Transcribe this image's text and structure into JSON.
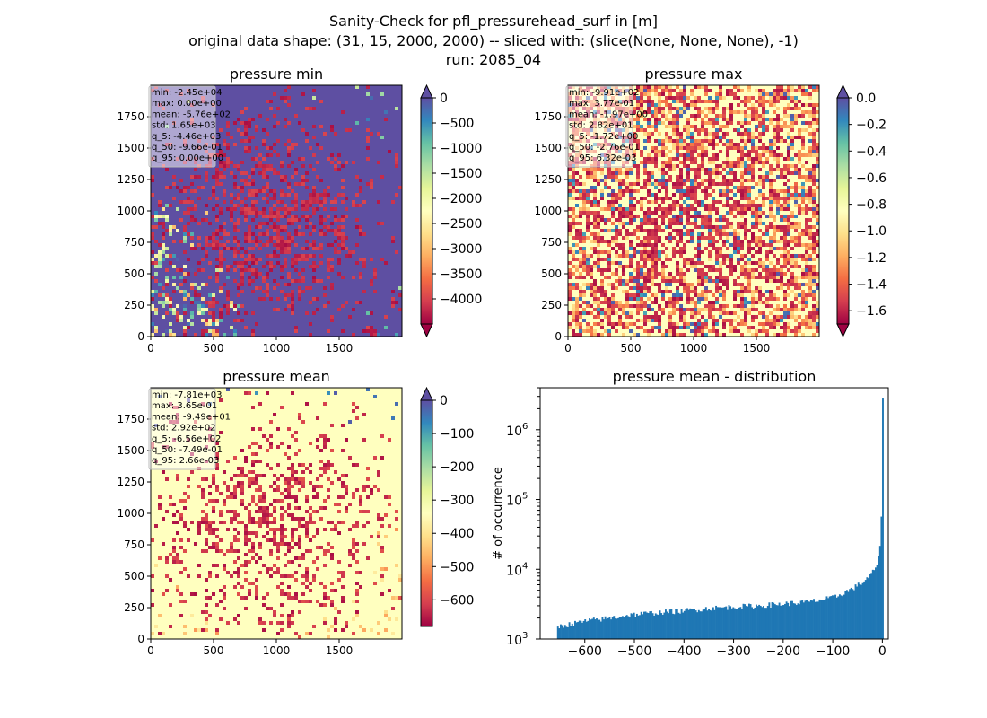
{
  "figure": {
    "suptitle_lines": [
      "Sanity-Check for pfl_pressurehead_surf in [m]",
      "original data shape: (31, 15, 2000, 2000) -- sliced with: (slice(None, None, None), -1)",
      "run: 2085_04"
    ]
  },
  "colormap": {
    "name": "Spectral",
    "stops": [
      "#9e0142",
      "#d53e4f",
      "#f46d43",
      "#fdae61",
      "#fee08b",
      "#ffffbf",
      "#e6f598",
      "#abdda4",
      "#66c2a5",
      "#3288bd",
      "#5e4fa2"
    ]
  },
  "chart_data": [
    {
      "type": "heatmap",
      "title": "pressure min",
      "x_ticks": [
        "0",
        "500",
        "1000",
        "1500"
      ],
      "y_ticks": [
        "0",
        "250",
        "500",
        "750",
        "1000",
        "1250",
        "1500",
        "1750"
      ],
      "xlim": [
        0,
        2000
      ],
      "ylim": [
        0,
        2000
      ],
      "colorbar": {
        "vmin": -4500,
        "vmax": 0,
        "extend": "both",
        "ticks": [
          "0",
          "−500",
          "−1000",
          "−1500",
          "−2000",
          "−2500",
          "−3000",
          "−3500",
          "−4000"
        ]
      },
      "stats": [
        "min: -2.45e+04",
        "max: 0.00e+00",
        "mean: -5.76e+02",
        "std: 1.65e+03",
        "q_5: -4.46e+03",
        "q_50: -9.66e-01",
        "q_95: 0.00e+00"
      ],
      "background_colormap_value": 1.0
    },
    {
      "type": "heatmap",
      "title": "pressure max",
      "x_ticks": [
        "0",
        "500",
        "1000",
        "1500"
      ],
      "y_ticks": [
        "0",
        "250",
        "500",
        "750",
        "1000",
        "1250",
        "1500",
        "1750"
      ],
      "xlim": [
        0,
        2000
      ],
      "ylim": [
        0,
        2000
      ],
      "colorbar": {
        "vmin": -1.7,
        "vmax": 0.0,
        "extend": "both",
        "ticks": [
          "0.0",
          "−0.2",
          "−0.4",
          "−0.6",
          "−0.8",
          "−1.0",
          "−1.2",
          "−1.4",
          "−1.6"
        ]
      },
      "stats": [
        "min: -9.91e+02",
        "max: 3.77e-01",
        "mean: -1.97e+00",
        "std: 2.82e+01",
        "q_5: -1.72e+00",
        "q_50: -2.76e-01",
        "q_95: 6.32e-03"
      ],
      "background_colormap_value": 0.5
    },
    {
      "type": "heatmap",
      "title": "pressure mean",
      "x_ticks": [
        "0",
        "500",
        "1000",
        "1500"
      ],
      "y_ticks": [
        "0",
        "250",
        "500",
        "750",
        "1000",
        "1250",
        "1500",
        "1750"
      ],
      "xlim": [
        0,
        2000
      ],
      "ylim": [
        0,
        2000
      ],
      "colorbar": {
        "vmin": -680,
        "vmax": 0,
        "extend": "max",
        "ticks": [
          "0",
          "−100",
          "−200",
          "−300",
          "−400",
          "−500",
          "−600"
        ]
      },
      "stats": [
        "min: -7.81e+03",
        "max: 3.65e-01",
        "mean: -9.49e+01",
        "std: 2.92e+02",
        "q_5: -6.56e+02",
        "q_50: -7.49e-01",
        "q_95: 2.66e-03"
      ],
      "background_colormap_value": 0.5
    },
    {
      "type": "bar",
      "title": "pressure mean - distribution",
      "ylabel": "# of occurrence",
      "xlabel": "",
      "yscale": "log",
      "xlim": [
        -690,
        12
      ],
      "ylim": [
        1000,
        4000000
      ],
      "x_ticks": [
        "−600",
        "−500",
        "−400",
        "−300",
        "−200",
        "−100",
        "0"
      ],
      "y_ticks": [
        {
          "base": "10",
          "exp": "3"
        },
        {
          "base": "10",
          "exp": "4"
        },
        {
          "base": "10",
          "exp": "5"
        },
        {
          "base": "10",
          "exp": "6"
        }
      ],
      "bar_color": "#1f77b4",
      "series": [
        {
          "bin_start": -656,
          "bin_width": 2.9,
          "anchors": [
            [
              -656,
              1500
            ],
            [
              -600,
              1800
            ],
            [
              -550,
              2000
            ],
            [
              -500,
              2250
            ],
            [
              -450,
              2400
            ],
            [
              -400,
              2550
            ],
            [
              -350,
              2750
            ],
            [
              -300,
              2900
            ],
            [
              -250,
              3000
            ],
            [
              -200,
              3200
            ],
            [
              -150,
              3400
            ],
            [
              -100,
              3900
            ],
            [
              -80,
              4500
            ],
            [
              -60,
              5300
            ],
            [
              -40,
              6500
            ],
            [
              -30,
              7500
            ],
            [
              -20,
              9000
            ],
            [
              -12,
              11000
            ],
            [
              -8,
              14000
            ],
            [
              -5,
              20000
            ],
            [
              -3,
              40000
            ],
            [
              -1,
              75000
            ],
            [
              0,
              2800000
            ]
          ]
        }
      ]
    }
  ]
}
